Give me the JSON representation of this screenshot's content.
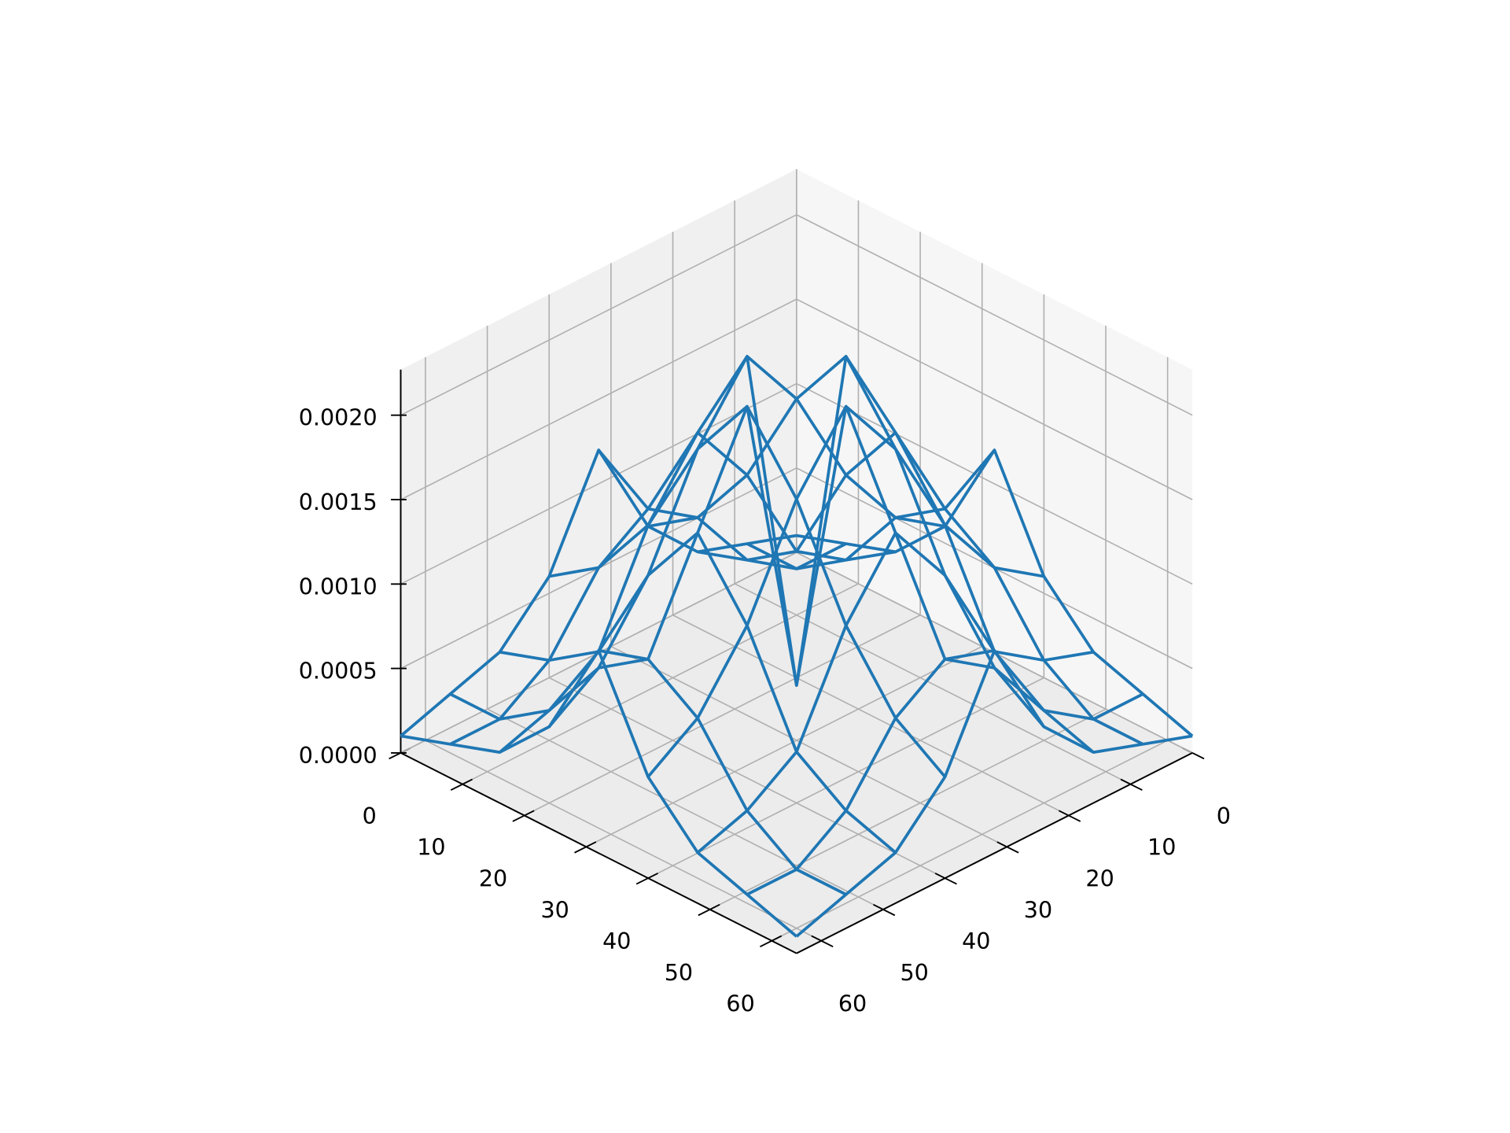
{
  "chart_data": {
    "type": "wireframe",
    "x": [
      0,
      8,
      16,
      24,
      32,
      40,
      48,
      56,
      64
    ],
    "y": [
      0,
      8,
      16,
      24,
      32,
      40,
      48,
      56,
      64
    ],
    "z": [
      [
        0.0001,
        0.0002,
        0.0003,
        0.0006,
        0.0012,
        0.0006,
        0.0003,
        0.0002,
        0.0001
      ],
      [
        0.0002,
        0.0002,
        0.0004,
        0.0008,
        0.001,
        0.0008,
        0.0004,
        0.0002,
        0.0002
      ],
      [
        0.0003,
        0.0004,
        0.0006,
        0.0012,
        0.0016,
        0.0012,
        0.0006,
        0.0004,
        0.0003
      ],
      [
        0.0006,
        0.0008,
        0.0012,
        0.0018,
        0.0022,
        0.0018,
        0.0012,
        0.0008,
        0.0006
      ],
      [
        0.0012,
        0.001,
        0.0016,
        0.0022,
        0.0004,
        0.0022,
        0.0016,
        0.001,
        0.0012
      ],
      [
        0.0006,
        0.0008,
        0.0012,
        0.0018,
        0.0022,
        0.0018,
        0.0012,
        0.0008,
        0.0006
      ],
      [
        0.0003,
        0.0004,
        0.0006,
        0.0012,
        0.0016,
        0.0012,
        0.0006,
        0.0004,
        0.0003
      ],
      [
        0.0002,
        0.0002,
        0.0004,
        0.0008,
        0.001,
        0.0008,
        0.0004,
        0.0002,
        0.0002
      ],
      [
        0.0001,
        0.0002,
        0.0003,
        0.0006,
        0.0012,
        0.0006,
        0.0003,
        0.0002,
        0.0001
      ]
    ],
    "color": "#1f77b4",
    "xlim": [
      0,
      64
    ],
    "ylim": [
      0,
      64
    ],
    "zlim": [
      0,
      0.00227
    ],
    "xticks": [
      0,
      10,
      20,
      30,
      40,
      50,
      60
    ],
    "yticks": [
      0,
      10,
      20,
      30,
      40,
      50,
      60
    ],
    "zticks": [
      {
        "value": 0,
        "label": "0.0000"
      },
      0.0005,
      {
        "value": 0.001,
        "label": "0.0010"
      },
      {
        "value": 0.0015,
        "label": "0.0015"
      },
      {
        "value": 0.002,
        "label": "0.0020"
      }
    ],
    "grid": true
  }
}
